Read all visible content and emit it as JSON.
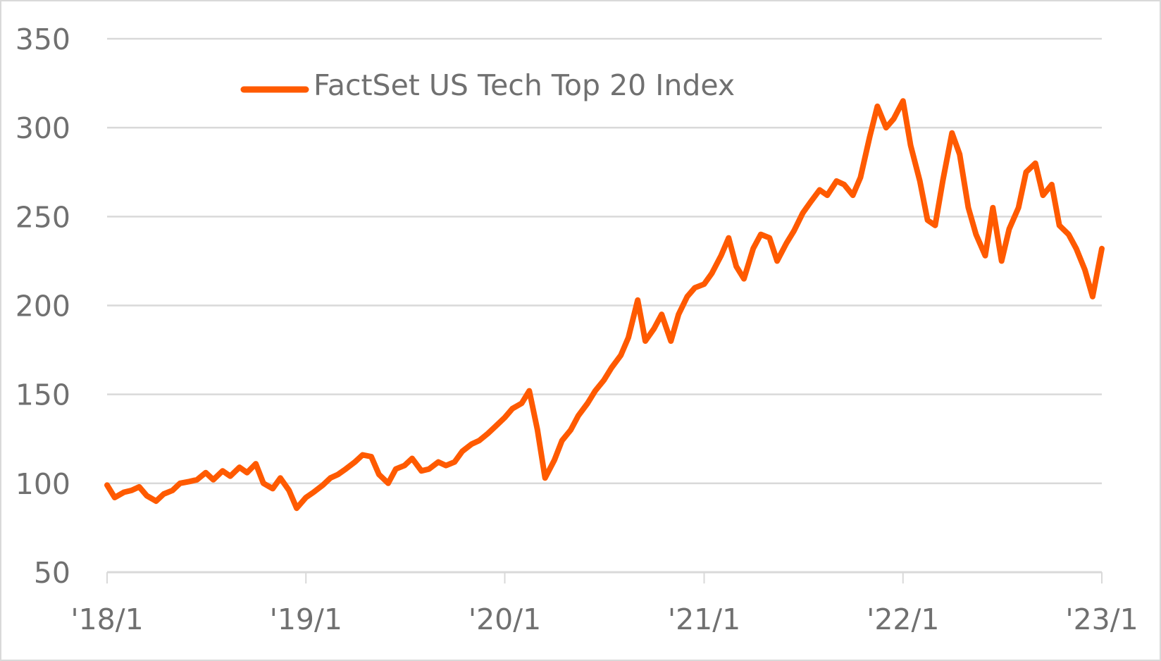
{
  "chart_data": {
    "type": "line",
    "title": "",
    "xlabel": "",
    "ylabel": "",
    "ylim": [
      50,
      350
    ],
    "yticks": [
      "50",
      "100",
      "150",
      "200",
      "250",
      "300",
      "350"
    ],
    "xlim": [
      "2018-01-01",
      "2023-01-01"
    ],
    "xticks": [
      {
        "date": "2018-01-01",
        "label": "'18/1"
      },
      {
        "date": "2019-01-01",
        "label": "'19/1"
      },
      {
        "date": "2020-01-01",
        "label": "'20/1"
      },
      {
        "date": "2021-01-01",
        "label": "'21/1"
      },
      {
        "date": "2022-01-01",
        "label": "'22/1"
      },
      {
        "date": "2023-01-01",
        "label": "'23/1"
      }
    ],
    "grid": true,
    "legend": "top-left",
    "series": [
      {
        "name": "FactSet US Tech Top 20 Index",
        "color": "#ff5a00",
        "points": [
          [
            "2018-01-01",
            99
          ],
          [
            "2018-01-15",
            92
          ],
          [
            "2018-02-01",
            95
          ],
          [
            "2018-02-15",
            96
          ],
          [
            "2018-03-01",
            98
          ],
          [
            "2018-03-15",
            93
          ],
          [
            "2018-04-01",
            90
          ],
          [
            "2018-04-15",
            94
          ],
          [
            "2018-05-01",
            96
          ],
          [
            "2018-05-15",
            100
          ],
          [
            "2018-06-01",
            101
          ],
          [
            "2018-06-15",
            102
          ],
          [
            "2018-07-01",
            106
          ],
          [
            "2018-07-15",
            102
          ],
          [
            "2018-08-01",
            107
          ],
          [
            "2018-08-15",
            104
          ],
          [
            "2018-09-01",
            109
          ],
          [
            "2018-09-15",
            106
          ],
          [
            "2018-10-01",
            111
          ],
          [
            "2018-10-15",
            100
          ],
          [
            "2018-11-01",
            97
          ],
          [
            "2018-11-15",
            103
          ],
          [
            "2018-12-01",
            96
          ],
          [
            "2018-12-15",
            86
          ],
          [
            "2019-01-01",
            92
          ],
          [
            "2019-01-15",
            95
          ],
          [
            "2019-02-01",
            99
          ],
          [
            "2019-02-15",
            103
          ],
          [
            "2019-03-01",
            105
          ],
          [
            "2019-03-15",
            108
          ],
          [
            "2019-04-01",
            112
          ],
          [
            "2019-04-15",
            116
          ],
          [
            "2019-05-01",
            115
          ],
          [
            "2019-05-15",
            105
          ],
          [
            "2019-06-01",
            100
          ],
          [
            "2019-06-15",
            108
          ],
          [
            "2019-07-01",
            110
          ],
          [
            "2019-07-15",
            114
          ],
          [
            "2019-08-01",
            107
          ],
          [
            "2019-08-15",
            108
          ],
          [
            "2019-09-01",
            112
          ],
          [
            "2019-09-15",
            110
          ],
          [
            "2019-10-01",
            112
          ],
          [
            "2019-10-15",
            118
          ],
          [
            "2019-11-01",
            122
          ],
          [
            "2019-11-15",
            124
          ],
          [
            "2019-12-01",
            128
          ],
          [
            "2019-12-15",
            132
          ],
          [
            "2020-01-01",
            137
          ],
          [
            "2020-01-15",
            142
          ],
          [
            "2020-02-01",
            145
          ],
          [
            "2020-02-15",
            152
          ],
          [
            "2020-03-01",
            130
          ],
          [
            "2020-03-15",
            103
          ],
          [
            "2020-04-01",
            113
          ],
          [
            "2020-04-15",
            124
          ],
          [
            "2020-05-01",
            130
          ],
          [
            "2020-05-15",
            138
          ],
          [
            "2020-06-01",
            145
          ],
          [
            "2020-06-15",
            152
          ],
          [
            "2020-07-01",
            158
          ],
          [
            "2020-07-15",
            165
          ],
          [
            "2020-08-01",
            172
          ],
          [
            "2020-08-15",
            182
          ],
          [
            "2020-09-01",
            203
          ],
          [
            "2020-09-15",
            180
          ],
          [
            "2020-10-01",
            187
          ],
          [
            "2020-10-15",
            195
          ],
          [
            "2020-11-01",
            180
          ],
          [
            "2020-11-15",
            195
          ],
          [
            "2020-12-01",
            205
          ],
          [
            "2020-12-15",
            210
          ],
          [
            "2021-01-01",
            212
          ],
          [
            "2021-01-15",
            218
          ],
          [
            "2021-02-01",
            228
          ],
          [
            "2021-02-15",
            238
          ],
          [
            "2021-03-01",
            222
          ],
          [
            "2021-03-15",
            215
          ],
          [
            "2021-04-01",
            232
          ],
          [
            "2021-04-15",
            240
          ],
          [
            "2021-05-01",
            238
          ],
          [
            "2021-05-15",
            225
          ],
          [
            "2021-06-01",
            235
          ],
          [
            "2021-06-15",
            242
          ],
          [
            "2021-07-01",
            252
          ],
          [
            "2021-07-15",
            258
          ],
          [
            "2021-08-01",
            265
          ],
          [
            "2021-08-15",
            262
          ],
          [
            "2021-09-01",
            270
          ],
          [
            "2021-09-15",
            268
          ],
          [
            "2021-10-01",
            262
          ],
          [
            "2021-10-15",
            272
          ],
          [
            "2021-11-01",
            295
          ],
          [
            "2021-11-15",
            312
          ],
          [
            "2021-12-01",
            300
          ],
          [
            "2021-12-15",
            305
          ],
          [
            "2022-01-01",
            315
          ],
          [
            "2022-01-15",
            290
          ],
          [
            "2022-02-01",
            270
          ],
          [
            "2022-02-15",
            248
          ],
          [
            "2022-03-01",
            245
          ],
          [
            "2022-03-15",
            270
          ],
          [
            "2022-04-01",
            297
          ],
          [
            "2022-04-15",
            285
          ],
          [
            "2022-05-01",
            255
          ],
          [
            "2022-05-15",
            240
          ],
          [
            "2022-06-01",
            228
          ],
          [
            "2022-06-15",
            255
          ],
          [
            "2022-07-01",
            225
          ],
          [
            "2022-07-15",
            243
          ],
          [
            "2022-08-01",
            255
          ],
          [
            "2022-08-15",
            275
          ],
          [
            "2022-09-01",
            280
          ],
          [
            "2022-09-15",
            262
          ],
          [
            "2022-10-01",
            268
          ],
          [
            "2022-10-15",
            245
          ],
          [
            "2022-11-01",
            240
          ],
          [
            "2022-11-15",
            232
          ],
          [
            "2022-12-01",
            220
          ],
          [
            "2022-12-15",
            205
          ],
          [
            "2023-01-01",
            232
          ]
        ]
      }
    ]
  }
}
